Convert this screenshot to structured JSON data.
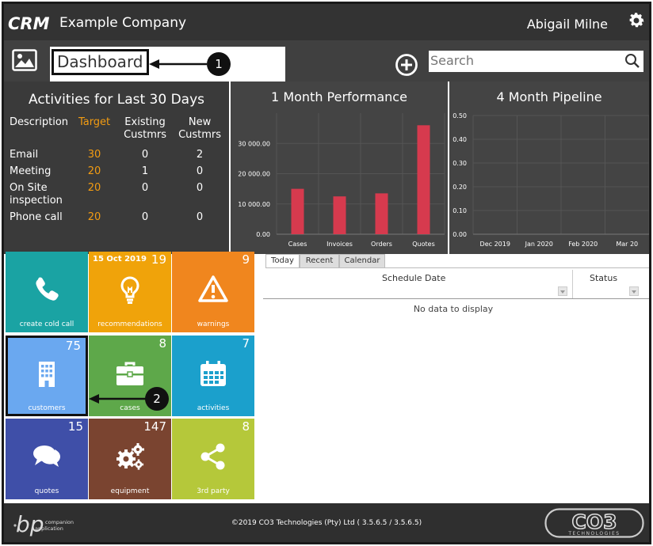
{
  "header": {
    "logo_text": "CRM",
    "company": "Example Company",
    "user": "Abigail Milne"
  },
  "toolbar": {
    "page_title": "Dashboard",
    "search_placeholder": "Search"
  },
  "activities": {
    "title": "Activities for Last 30 Days",
    "columns": [
      "Description",
      "Target",
      "Existing Custmrs",
      "New Custmrs"
    ],
    "rows": [
      {
        "description": "Email",
        "target": "30",
        "existing": "0",
        "new": "2"
      },
      {
        "description": "Meeting",
        "target": "20",
        "existing": "1",
        "new": "0"
      },
      {
        "description": "On Site inspection",
        "target": "20",
        "existing": "0",
        "new": "0"
      },
      {
        "description": "Phone call",
        "target": "20",
        "existing": "0",
        "new": "0"
      }
    ]
  },
  "chart_data": [
    {
      "type": "bar",
      "title": "1 Month Performance",
      "categories": [
        "Cases",
        "Invoices",
        "Orders",
        "Quotes"
      ],
      "values": [
        15000,
        12500,
        13500,
        36000
      ],
      "ylim": [
        0,
        40000
      ],
      "yticks": [
        "0.00",
        "10 000.00",
        "20 000.00",
        "30 000.00"
      ],
      "ytick_values": [
        0,
        10000,
        20000,
        30000
      ],
      "grid": true,
      "color": "#d63a4e"
    },
    {
      "type": "bar",
      "title": "4 Month Pipeline",
      "categories": [
        "Dec 2019",
        "Jan 2020",
        "Feb 2020",
        "Mar 20"
      ],
      "values": [
        0,
        0,
        0,
        0
      ],
      "ylim": [
        0,
        0.5
      ],
      "yticks": [
        "0.00",
        "0.10",
        "0.20",
        "0.30",
        "0.40",
        "0.50"
      ],
      "ytick_values": [
        0,
        0.1,
        0.2,
        0.3,
        0.4,
        0.5
      ],
      "grid": true
    }
  ],
  "tiles": [
    {
      "label": "create cold call",
      "count": "",
      "date": "",
      "color": "#1aa3a3",
      "icon": "phone-icon"
    },
    {
      "label": "recommendations",
      "count": "19",
      "date": "15 Oct 2019",
      "color": "#f0a30a",
      "icon": "lightbulb-icon"
    },
    {
      "label": "warnings",
      "count": "9",
      "date": "",
      "color": "#f0861e",
      "icon": "warning-icon"
    },
    {
      "label": "customers",
      "count": "75",
      "date": "",
      "color": "#6aa8f0",
      "icon": "building-icon"
    },
    {
      "label": "cases",
      "count": "8",
      "date": "",
      "color": "#5ea84a",
      "icon": "briefcase-icon"
    },
    {
      "label": "activities",
      "count": "7",
      "date": "",
      "color": "#1ba0cc",
      "icon": "calendar-icon"
    },
    {
      "label": "quotes",
      "count": "15",
      "date": "",
      "color": "#3f4fa8",
      "icon": "chat-bubbles-icon"
    },
    {
      "label": "equipment",
      "count": "147",
      "date": "",
      "color": "#7a4430",
      "icon": "gears-icon"
    },
    {
      "label": "3rd party",
      "count": "8",
      "date": "",
      "color": "#b5c83a",
      "icon": "share-icon"
    }
  ],
  "schedule": {
    "tabs": [
      "Today",
      "Recent",
      "Calendar"
    ],
    "active_tab": "Today",
    "columns": [
      "Schedule Date",
      "Status"
    ],
    "empty_text": "No data to display"
  },
  "callouts": [
    "1",
    "2"
  ],
  "footer": {
    "copyright": "©2019 CO3 Technologies (Pty) Ltd ( 3.5.6.5 / 3.5.6.5)",
    "bp_logo_text": "bp",
    "bp_subtext_1": "companion",
    "bp_subtext_2": "application",
    "co3_logo_text": "CO3",
    "co3_subtext": "TECHNOLOGIES"
  }
}
